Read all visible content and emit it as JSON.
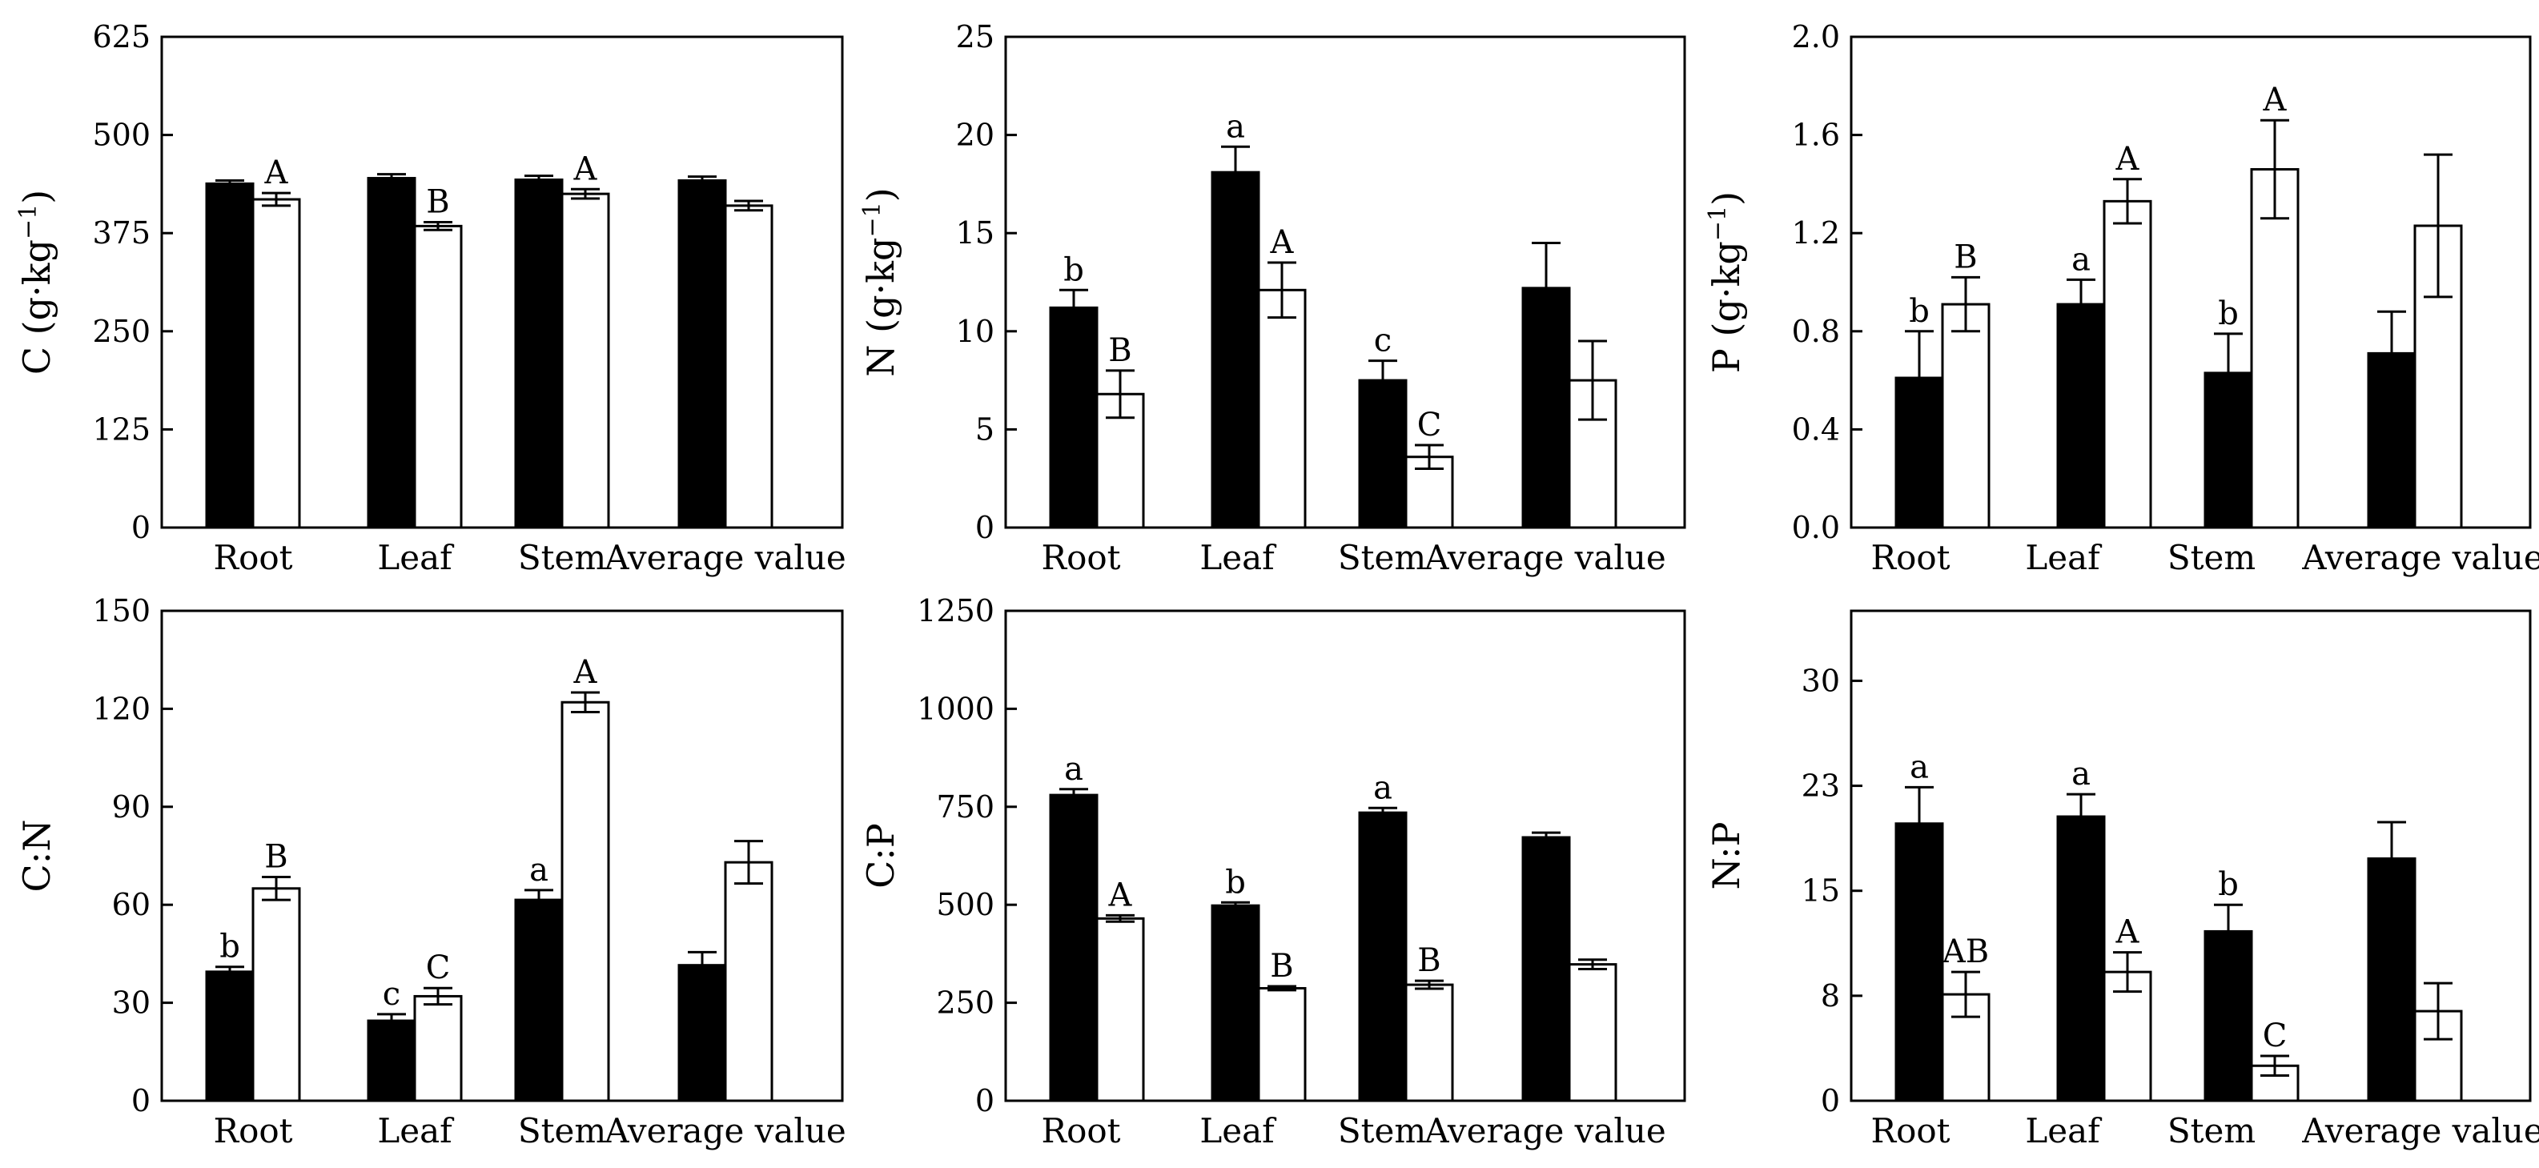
{
  "chart_data": [
    {
      "type": "bar",
      "categories": [
        "Root",
        "Leaf",
        "Stem",
        "Average value"
      ],
      "ylabel": "C (g·kg",
      "ylabel_sup": "−1",
      "ylabel_close": ")",
      "ylim": [
        0,
        625
      ],
      "yticks": [
        "0",
        "125",
        "250",
        "375",
        "500",
        "625"
      ],
      "series": [
        {
          "name": "black",
          "values": [
            438,
            445,
            443,
            442
          ],
          "errors": [
            4,
            5,
            5,
            5
          ],
          "labels": [
            "",
            "",
            "",
            ""
          ]
        },
        {
          "name": "white",
          "values": [
            418,
            384,
            425,
            410
          ],
          "errors": [
            8,
            5,
            6,
            6
          ],
          "labels": [
            "A",
            "B",
            "A",
            ""
          ]
        }
      ]
    },
    {
      "type": "bar",
      "categories": [
        "Root",
        "Leaf",
        "Stem",
        "Average value"
      ],
      "ylabel": "N (g·kg",
      "ylabel_sup": "−1",
      "ylabel_close": ")",
      "ylim": [
        0,
        25
      ],
      "yticks": [
        "0",
        "5",
        "10",
        "15",
        "20",
        "25"
      ],
      "series": [
        {
          "name": "black",
          "values": [
            11.2,
            18.1,
            7.5,
            12.2
          ],
          "errors": [
            0.9,
            1.3,
            1.0,
            2.3
          ],
          "labels": [
            "b",
            "a",
            "c",
            ""
          ]
        },
        {
          "name": "white",
          "values": [
            6.8,
            12.1,
            3.6,
            7.5
          ],
          "errors": [
            1.2,
            1.4,
            0.6,
            2.0
          ],
          "labels": [
            "B",
            "A",
            "C",
            ""
          ]
        }
      ]
    },
    {
      "type": "bar",
      "categories": [
        "Root",
        "Leaf",
        "Stem",
        "Average value"
      ],
      "ylabel": "P (g·kg",
      "ylabel_sup": "−1",
      "ylabel_close": ")",
      "ylim": [
        0,
        2.0
      ],
      "yticks": [
        "0.0",
        "0.4",
        "0.8",
        "1.2",
        "1.6",
        "2.0"
      ],
      "series": [
        {
          "name": "black",
          "values": [
            0.61,
            0.91,
            0.63,
            0.71
          ],
          "errors": [
            0.19,
            0.1,
            0.16,
            0.17
          ],
          "labels": [
            "b",
            "a",
            "b",
            ""
          ]
        },
        {
          "name": "white",
          "values": [
            0.91,
            1.33,
            1.46,
            1.23
          ],
          "errors": [
            0.11,
            0.09,
            0.2,
            0.29
          ],
          "labels": [
            "B",
            "A",
            "A",
            ""
          ]
        }
      ]
    },
    {
      "type": "bar",
      "categories": [
        "Root",
        "Leaf",
        "Stem",
        "Average value"
      ],
      "ylabel": "C:N",
      "ylabel_sup": "",
      "ylabel_close": "",
      "ylim": [
        0,
        150
      ],
      "yticks": [
        "0",
        "30",
        "60",
        "90",
        "120",
        "150"
      ],
      "series": [
        {
          "name": "black",
          "values": [
            39.5,
            24.5,
            61.5,
            41.5
          ],
          "errors": [
            1.5,
            2.0,
            3.0,
            4.0
          ],
          "labels": [
            "b",
            "c",
            "a",
            ""
          ]
        },
        {
          "name": "white",
          "values": [
            65,
            32,
            122,
            73
          ],
          "errors": [
            3.5,
            2.5,
            3.0,
            6.5
          ],
          "labels": [
            "B",
            "C",
            "A",
            ""
          ]
        }
      ]
    },
    {
      "type": "bar",
      "categories": [
        "Root",
        "Leaf",
        "Stem",
        "Average value"
      ],
      "ylabel": "C:P",
      "ylabel_sup": "",
      "ylabel_close": "",
      "ylim": [
        0,
        1250
      ],
      "yticks": [
        "0",
        "250",
        "500",
        "750",
        "1000",
        "1250"
      ],
      "series": [
        {
          "name": "black",
          "values": [
            780,
            498,
            735,
            672
          ],
          "errors": [
            15,
            8,
            12,
            12
          ],
          "labels": [
            "a",
            "b",
            "a",
            ""
          ]
        },
        {
          "name": "white",
          "values": [
            465,
            287,
            296,
            348
          ],
          "errors": [
            8,
            5,
            10,
            12
          ],
          "labels": [
            "A",
            "B",
            "B",
            ""
          ]
        }
      ]
    },
    {
      "type": "bar",
      "categories": [
        "Root",
        "Leaf",
        "Stem",
        "Average value"
      ],
      "ylabel": "N:P",
      "ylabel_sup": "",
      "ylabel_close": "",
      "ylim": [
        0,
        35
      ],
      "yticks": [
        "0",
        "8",
        "15",
        "23",
        "30"
      ],
      "ytick_values": [
        0,
        7.5,
        15,
        22.5,
        30
      ],
      "series": [
        {
          "name": "black",
          "values": [
            19.8,
            20.3,
            12.1,
            17.3
          ],
          "errors": [
            2.6,
            1.6,
            1.9,
            2.6
          ],
          "labels": [
            "a",
            "a",
            "b",
            ""
          ]
        },
        {
          "name": "white",
          "values": [
            7.6,
            9.2,
            2.5,
            6.4
          ],
          "errors": [
            1.6,
            1.4,
            0.7,
            2.0
          ],
          "labels": [
            "AB",
            "A",
            "C",
            ""
          ]
        }
      ]
    }
  ]
}
